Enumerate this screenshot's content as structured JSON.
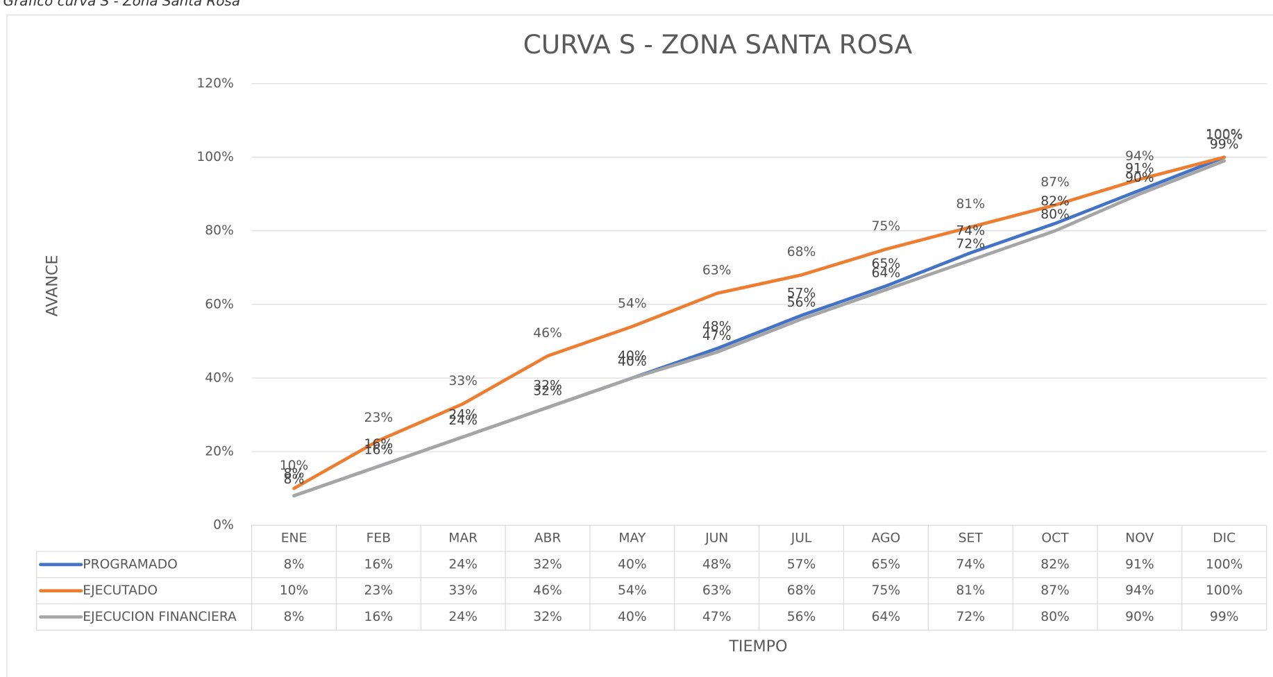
{
  "caption": "Gráfico curva S - Zona Santa Rosa",
  "chart_data": {
    "type": "line",
    "title": "CURVA S - ZONA SANTA ROSA",
    "y_label": "AVANCE",
    "x_label": "TIEMPO",
    "categories": [
      "ENE",
      "FEB",
      "MAR",
      "ABR",
      "MAY",
      "JUN",
      "JUL",
      "AGO",
      "SET",
      "OCT",
      "NOV",
      "DIC"
    ],
    "ylim": [
      0,
      120
    ],
    "yticks": [
      {
        "value": 0,
        "label": "0%"
      },
      {
        "value": 20,
        "label": "20%"
      },
      {
        "value": 40,
        "label": "40%"
      },
      {
        "value": 60,
        "label": "60%"
      },
      {
        "value": 80,
        "label": "80%"
      },
      {
        "value": 100,
        "label": "100%"
      },
      {
        "value": 120,
        "label": "120%"
      }
    ],
    "grid": true,
    "series": [
      {
        "name": "PROGRAMADO",
        "color": "#4472c4",
        "values": [
          8,
          16,
          24,
          32,
          40,
          48,
          57,
          65,
          74,
          82,
          91,
          100
        ],
        "value_labels": [
          "8%",
          "16%",
          "24%",
          "32%",
          "40%",
          "48%",
          "57%",
          "65%",
          "74%",
          "82%",
          "91%",
          "100%"
        ]
      },
      {
        "name": "EJECUTADO",
        "color": "#ed7d31",
        "values": [
          10,
          23,
          33,
          46,
          54,
          63,
          68,
          75,
          81,
          87,
          94,
          100
        ],
        "value_labels": [
          "10%",
          "23%",
          "33%",
          "46%",
          "54%",
          "63%",
          "68%",
          "75%",
          "81%",
          "87%",
          "94%",
          "100%"
        ]
      },
      {
        "name": "EJECUCION FINANCIERA",
        "color": "#a5a5a5",
        "values": [
          8,
          16,
          24,
          32,
          40,
          47,
          56,
          64,
          72,
          80,
          90,
          99
        ],
        "value_labels": [
          "8%",
          "16%",
          "24%",
          "32%",
          "40%",
          "47%",
          "56%",
          "64%",
          "72%",
          "80%",
          "90%",
          "99%"
        ]
      }
    ]
  }
}
